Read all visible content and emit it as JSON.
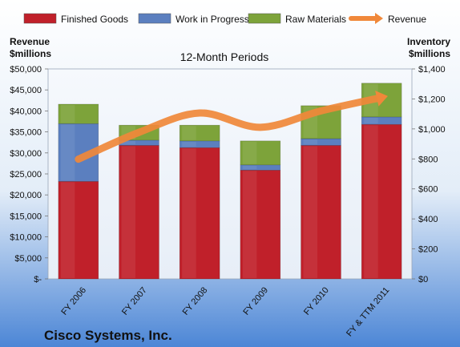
{
  "chart_data": {
    "type": "bar",
    "stacked": true,
    "title": "12-Month Periods",
    "company": "Cisco Systems, Inc.",
    "categories": [
      "FY 2006",
      "FY 2007",
      "FY 2008",
      "FY 2009",
      "FY 2010",
      "FY & TTM 2011"
    ],
    "left_axis": {
      "label": "Revenue\n$millions",
      "ticks": [
        "$-",
        "$5,000",
        "$10,000",
        "$15,000",
        "$20,000",
        "$25,000",
        "$30,000",
        "$35,000",
        "$40,000",
        "$45,000",
        "$50,000"
      ],
      "range": [
        0,
        50000
      ]
    },
    "right_axis": {
      "label": "Inventory\n$millions",
      "ticks": [
        "$0",
        "$200",
        "$400",
        "$600",
        "$800",
        "$1,000",
        "$1,200",
        "$1,400"
      ],
      "range": [
        0,
        1400
      ]
    },
    "series": [
      {
        "name": "Finished Goods",
        "axis": "right",
        "color": "#c0202a",
        "values": [
          650,
          890,
          875,
          725,
          890,
          1030
        ]
      },
      {
        "name": "Work in Progress",
        "axis": "right",
        "color": "#5b7fbf",
        "values": [
          385,
          35,
          45,
          35,
          45,
          50
        ]
      },
      {
        "name": "Raw Materials",
        "axis": "right",
        "color": "#7da33a",
        "values": [
          130,
          100,
          105,
          160,
          220,
          225
        ]
      },
      {
        "name": "Revenue",
        "axis": "left",
        "type": "line",
        "color": "#f0883a",
        "values": [
          28500,
          34900,
          39500,
          36100,
          40000,
          43200
        ]
      }
    ],
    "legend": "top",
    "grid": false
  }
}
